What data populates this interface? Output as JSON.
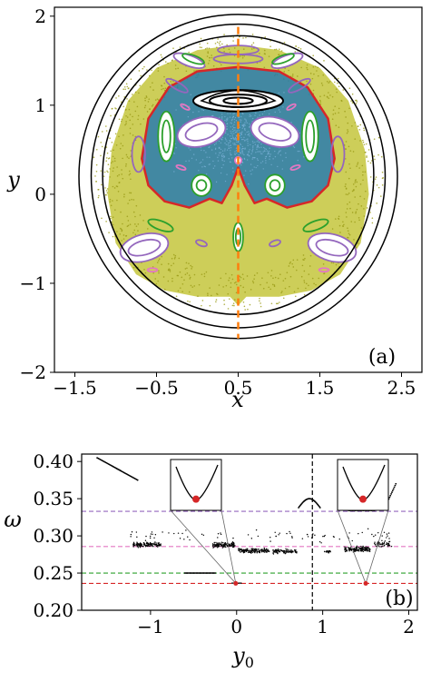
{
  "chart_data": [
    {
      "type": "scatter",
      "panel_label": "(a)",
      "xlabel": "x",
      "ylabel": "y",
      "xlim": [
        -1.75,
        2.75
      ],
      "ylim": [
        -2.0,
        2.1
      ],
      "xticks": [
        -1.5,
        -0.5,
        0.5,
        1.5,
        2.5
      ],
      "yticks": [
        -2,
        -1,
        0,
        1,
        2
      ],
      "xtick_labels": [
        "−1.5",
        "−0.5",
        "0.5",
        "1.5",
        "2.5"
      ],
      "ytick_labels": [
        "−2",
        "−1",
        "0",
        "1",
        "2"
      ],
      "colors": {
        "chaotic_inner": "#1f77b4",
        "chaotic_outer": "#bcbd22",
        "separatrix": "#d62728",
        "islands_green": "#2ca02c",
        "islands_purple": "#9467bd",
        "islands_pink": "#e377c2",
        "outer_tori": "#000000",
        "section_line": "#ff7f0e"
      },
      "section_line_x": 0.5,
      "outer_tori": [
        {
          "cx": 0.5,
          "rx": 1.95,
          "top": 2.02,
          "bottom": -1.62
        },
        {
          "cx": 0.5,
          "rx": 1.8,
          "top": 1.91,
          "bottom": -1.5
        },
        {
          "cx": 0.5,
          "rx": 1.66,
          "top": 1.78,
          "bottom": -1.35
        }
      ]
    },
    {
      "type": "scatter",
      "panel_label": "(b)",
      "xlabel": "y0",
      "ylabel": "ω",
      "xlim": [
        -1.8,
        2.1
      ],
      "ylim": [
        0.2,
        0.41
      ],
      "xticks": [
        -1,
        0,
        1,
        2
      ],
      "yticks": [
        0.2,
        0.25,
        0.3,
        0.35,
        0.4
      ],
      "xtick_labels": [
        "−1",
        "0",
        "1",
        "2"
      ],
      "ytick_labels": [
        "0.20",
        "0.25",
        "0.30",
        "0.35",
        "0.40"
      ],
      "vline_x": 0.88,
      "hlines": [
        {
          "y": 0.333,
          "color": "#9467bd"
        },
        {
          "y": 0.2857,
          "color": "#e377c2"
        },
        {
          "y": 0.25,
          "color": "#2ca02c"
        },
        {
          "y": 0.2361,
          "color": "#d62728"
        }
      ],
      "red_points": [
        {
          "x": -0.01,
          "y": 0.2361
        },
        {
          "x": 1.5,
          "y": 0.2361
        }
      ]
    }
  ]
}
